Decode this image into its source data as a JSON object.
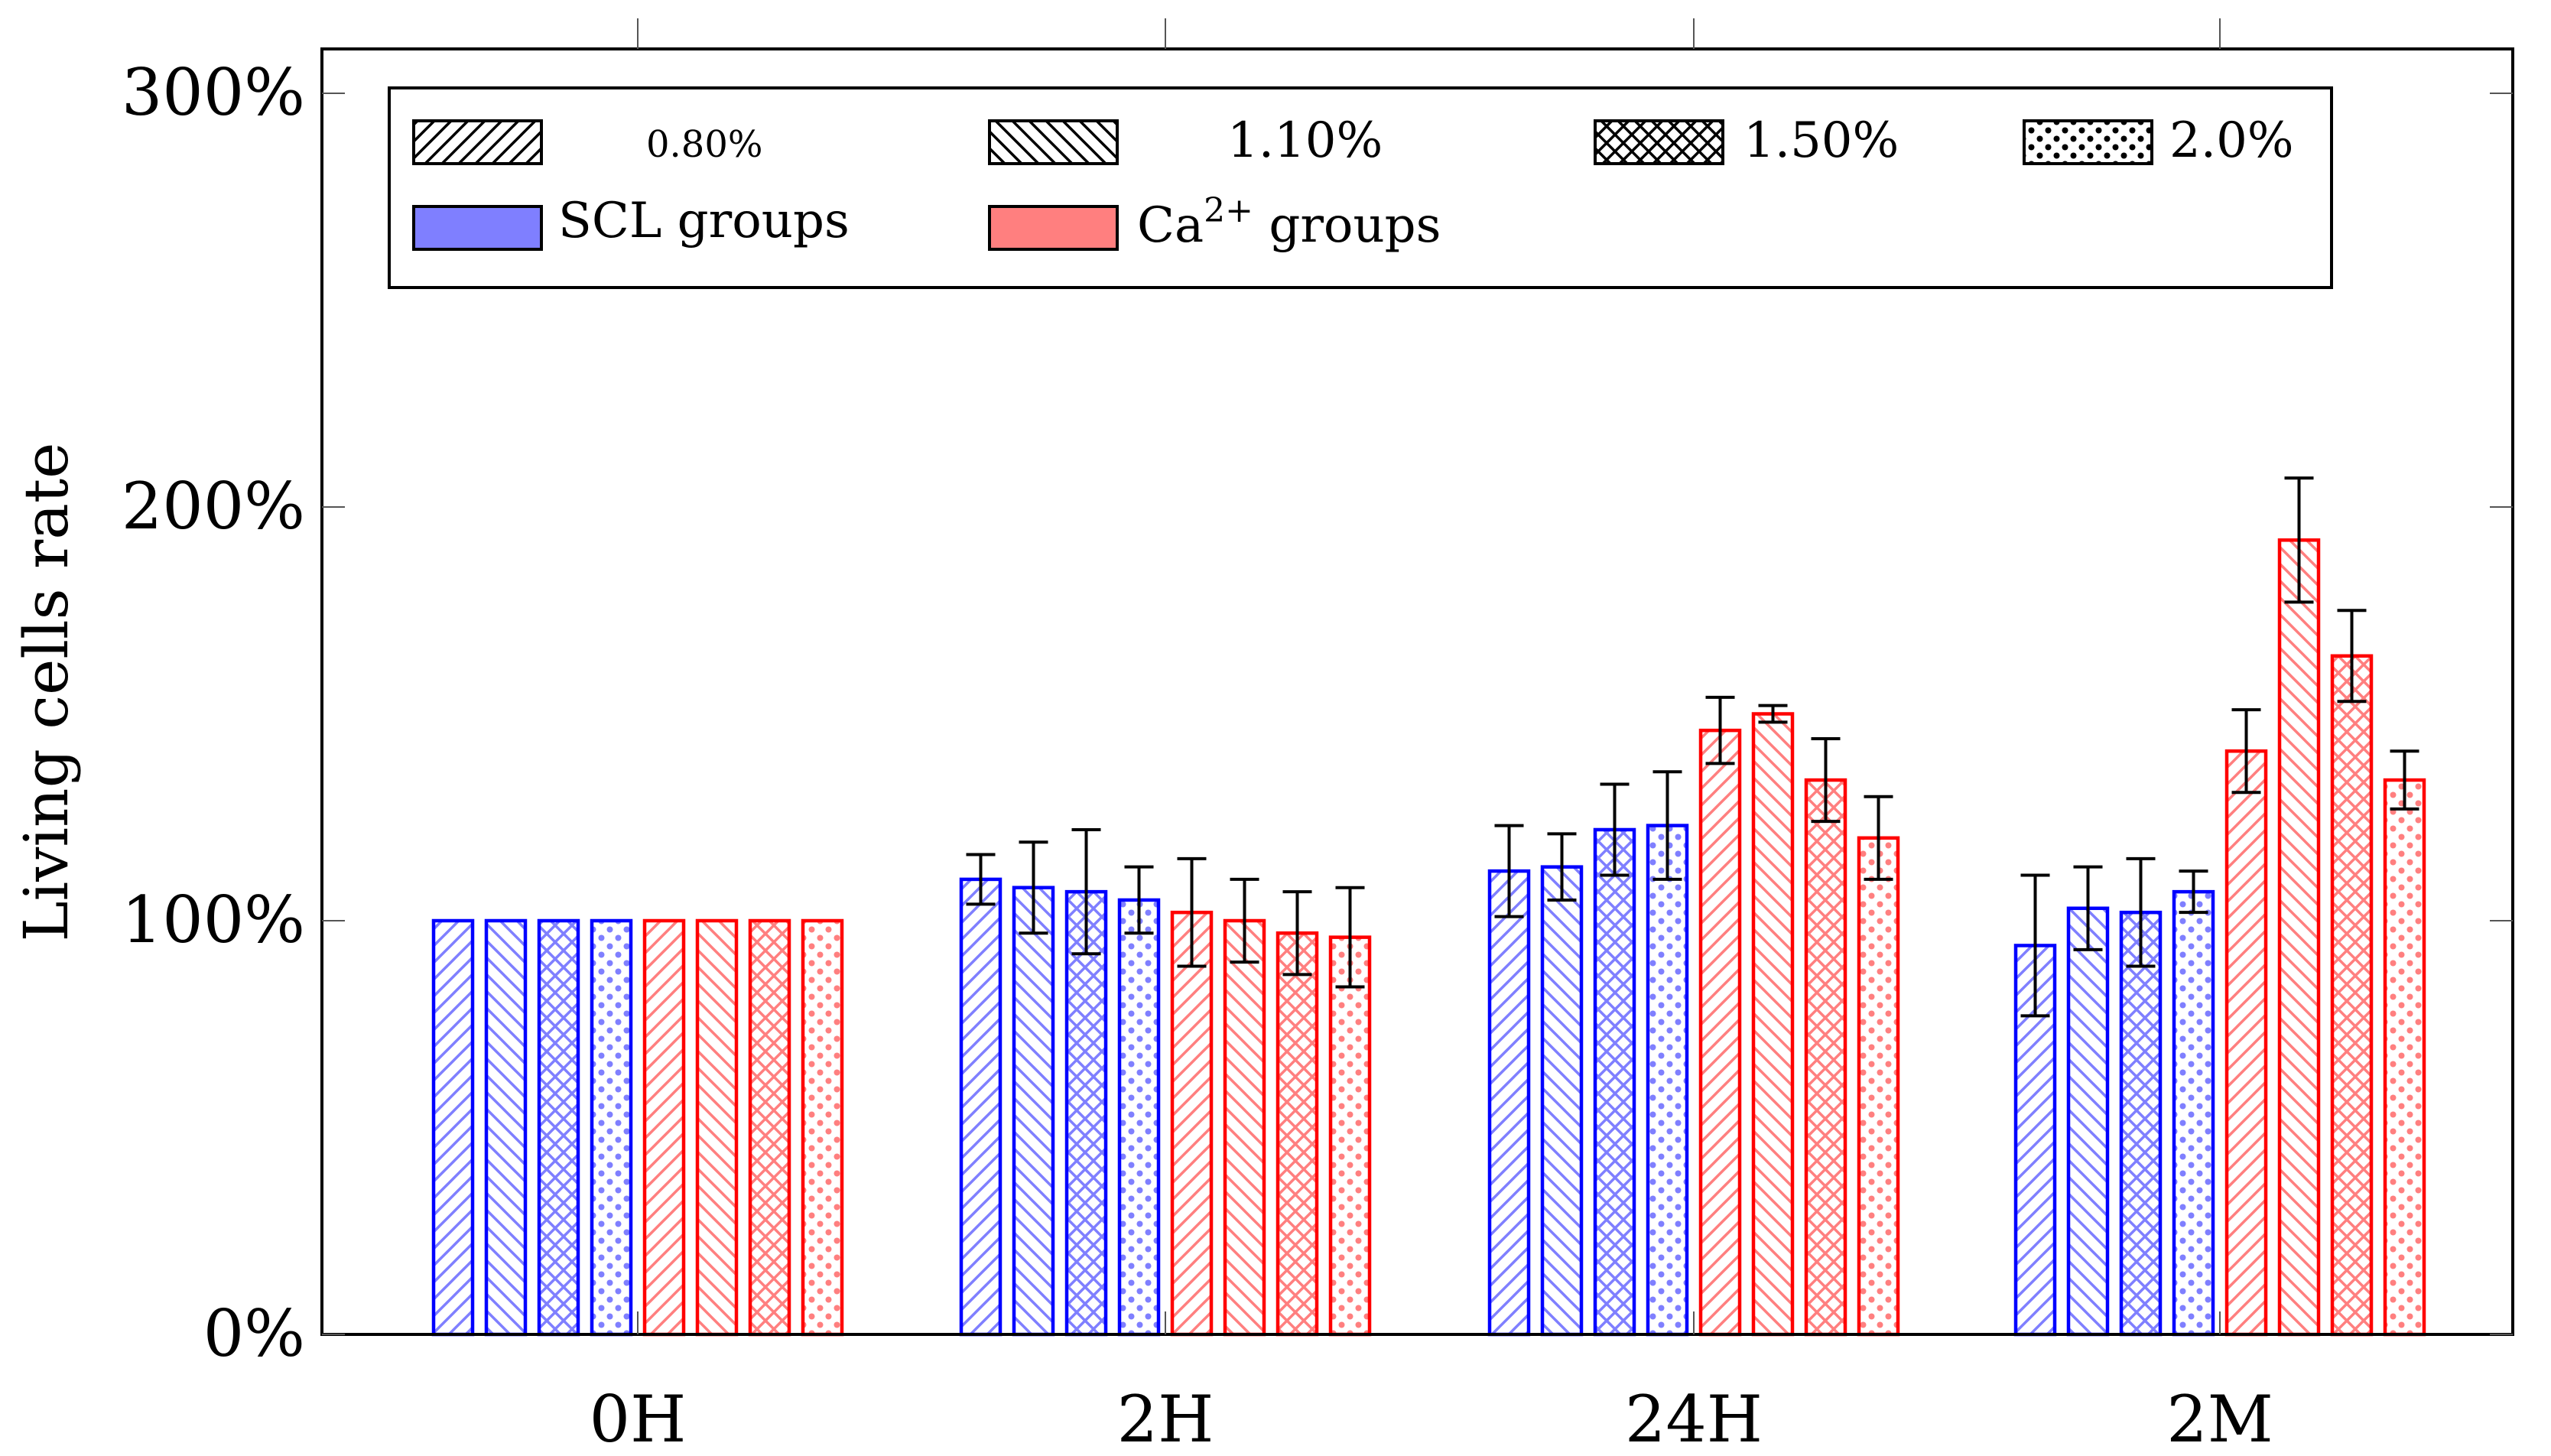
{
  "chart_data": {
    "type": "bar",
    "title": "",
    "xlabel": "",
    "ylabel": "Living cells rate",
    "ylim": [
      0,
      300
    ],
    "yticks": [
      "0%",
      "100%",
      "200%",
      "300%"
    ],
    "ytick_values": [
      0,
      100,
      200,
      300
    ],
    "categories": [
      "0H",
      "2H",
      "24H",
      "2M"
    ],
    "legend": {
      "placement": "top",
      "patterns": [
        "0.80%",
        "1.10%",
        "1.50%",
        "2.0%"
      ],
      "groups": [
        "SCL groups",
        "Ca",
        "2+",
        " groups"
      ]
    },
    "colors": {
      "scl": "#0000ff",
      "scl_fill": "#7f7fff",
      "ca": "#ff0000",
      "ca_fill": "#ff7f7f"
    },
    "series": [
      {
        "name": "SCL 0.80%",
        "group": "scl",
        "pattern": "ne",
        "values": [
          100,
          110,
          112,
          94
        ],
        "errors": [
          0,
          6,
          11,
          17
        ]
      },
      {
        "name": "SCL 1.10%",
        "group": "scl",
        "pattern": "nw",
        "values": [
          100,
          108,
          113,
          103
        ],
        "errors": [
          0,
          11,
          8,
          10
        ]
      },
      {
        "name": "SCL 1.50%",
        "group": "scl",
        "pattern": "cross",
        "values": [
          100,
          107,
          122,
          102
        ],
        "errors": [
          0,
          15,
          11,
          13
        ]
      },
      {
        "name": "SCL 2.0%",
        "group": "scl",
        "pattern": "dots",
        "values": [
          100,
          105,
          123,
          107
        ],
        "errors": [
          0,
          8,
          13,
          5
        ]
      },
      {
        "name": "Ca2+ 0.80%",
        "group": "ca",
        "pattern": "ne",
        "values": [
          100,
          102,
          146,
          141
        ],
        "errors": [
          0,
          13,
          8,
          10
        ]
      },
      {
        "name": "Ca2+ 1.10%",
        "group": "ca",
        "pattern": "nw",
        "values": [
          100,
          100,
          150,
          192
        ],
        "errors": [
          0,
          10,
          2,
          15
        ]
      },
      {
        "name": "Ca2+ 1.50%",
        "group": "ca",
        "pattern": "cross",
        "values": [
          100,
          97,
          134,
          164
        ],
        "errors": [
          0,
          10,
          10,
          11
        ]
      },
      {
        "name": "Ca2+ 2.0%",
        "group": "ca",
        "pattern": "dots",
        "values": [
          100,
          96,
          120,
          134
        ],
        "errors": [
          0,
          12,
          10,
          7
        ]
      }
    ]
  }
}
